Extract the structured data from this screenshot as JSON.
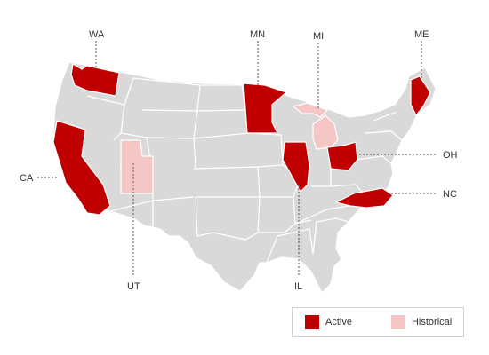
{
  "legend": {
    "active_label": "Active",
    "historical_label": "Historical",
    "active_color": "#c00000",
    "historical_color": "#f5c6c6",
    "base_color": "#d9d9d9"
  },
  "states": {
    "active": [
      "WA",
      "CA",
      "MN",
      "IL",
      "OH",
      "NC",
      "ME"
    ],
    "historical": [
      "UT",
      "MI"
    ]
  },
  "labels": {
    "wa": "WA",
    "mn": "MN",
    "mi": "MI",
    "me": "ME",
    "ca": "CA",
    "oh": "OH",
    "nc": "NC",
    "ut": "UT",
    "il": "IL"
  }
}
